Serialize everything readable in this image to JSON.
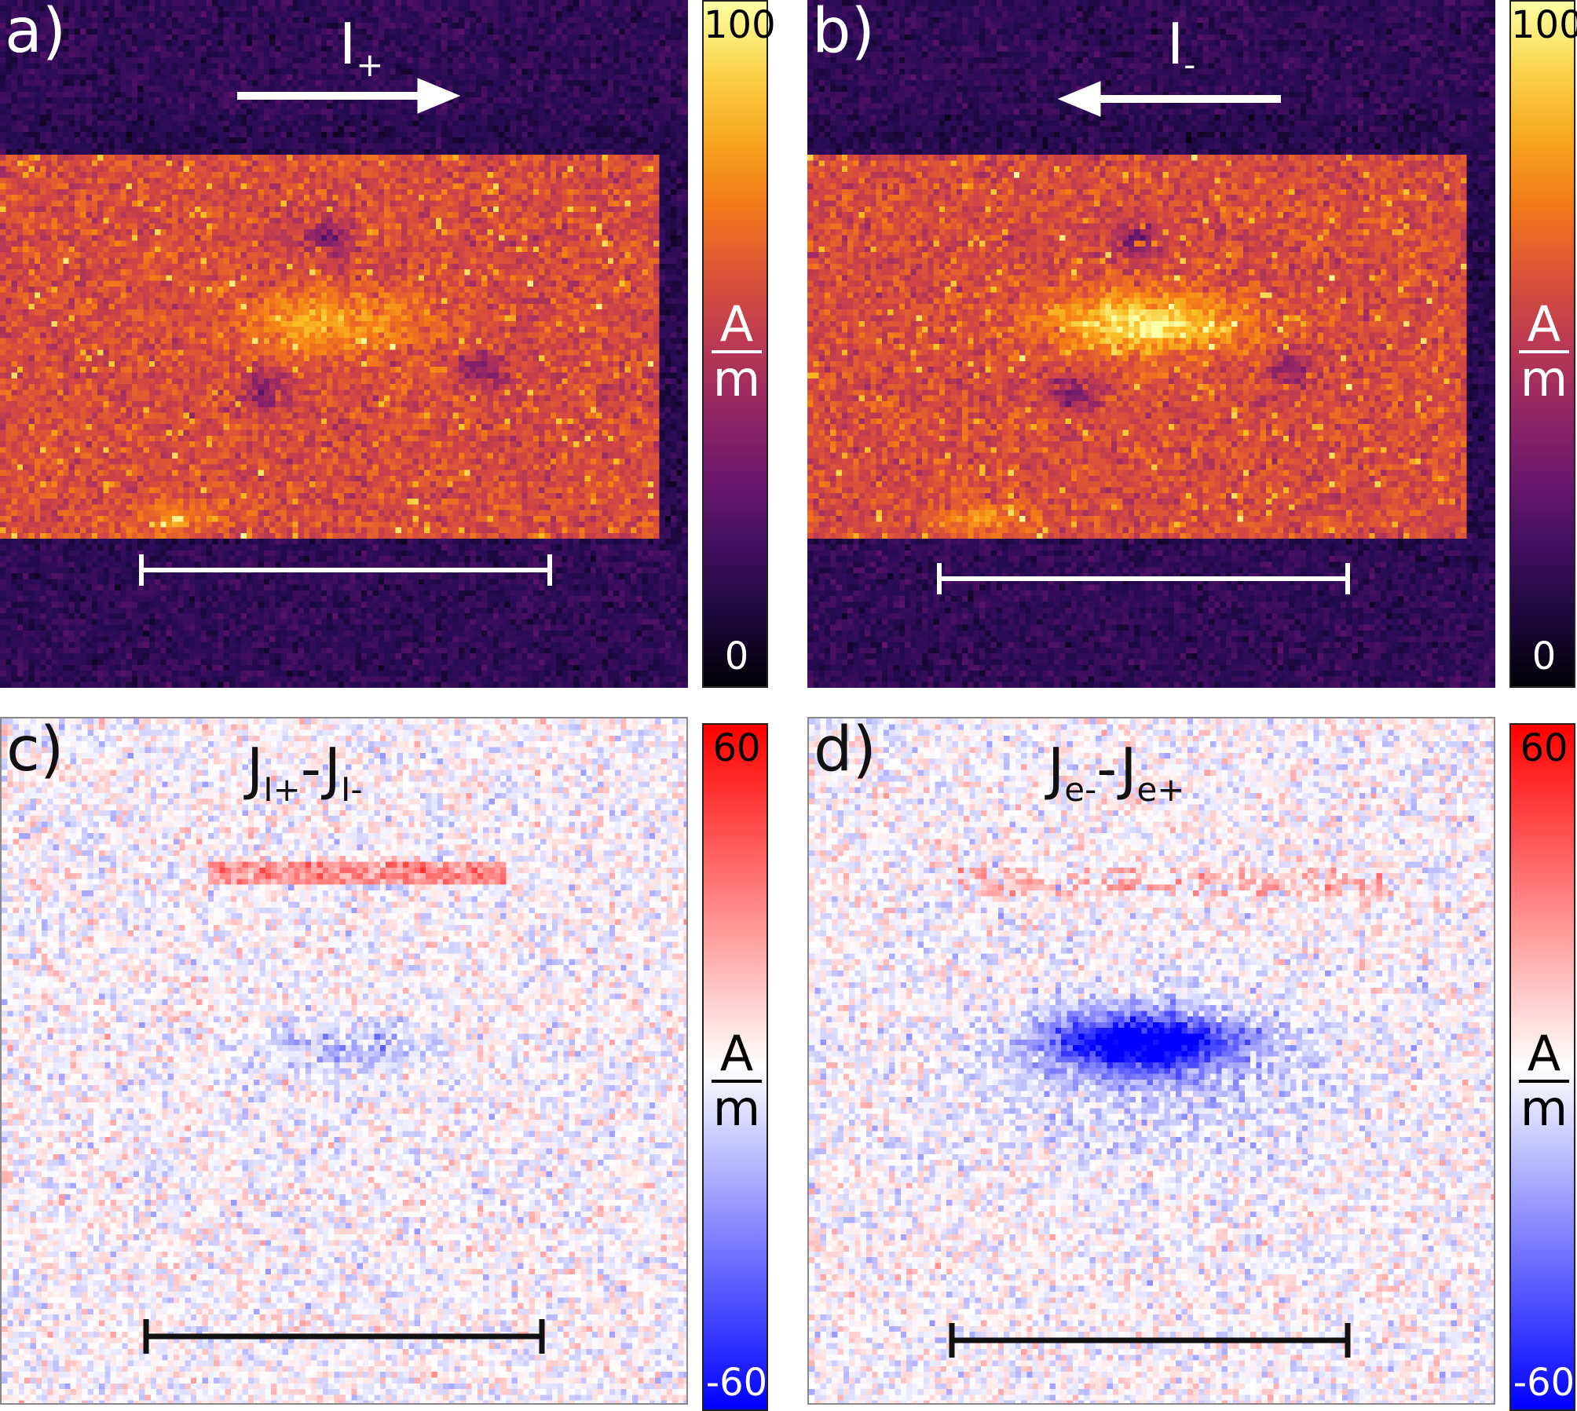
{
  "panels": [
    {
      "letter": "a)",
      "kind": "magnitude",
      "title_main": "I",
      "title_sub": "+",
      "arrow": "right",
      "scalebar_color": "#ffffff",
      "text_color": "#ffffff",
      "seed": 11,
      "variant": "plus"
    },
    {
      "letter": "b)",
      "kind": "magnitude",
      "title_main": "I",
      "title_sub": "-",
      "arrow": "left",
      "scalebar_color": "#ffffff",
      "text_color": "#ffffff",
      "seed": 23,
      "variant": "minus"
    },
    {
      "letter": "c)",
      "kind": "difference",
      "title_parts": [
        "J",
        "I+",
        "-J",
        "I-"
      ],
      "scalebar_color": "#111111",
      "text_color": "#111111",
      "seed": 37,
      "variant": "c"
    },
    {
      "letter": "d)",
      "kind": "difference",
      "title_parts": [
        "J",
        "e-",
        "-J",
        "e+"
      ],
      "scalebar_color": "#111111",
      "text_color": "#111111",
      "seed": 53,
      "variant": "d"
    }
  ],
  "colorbars": [
    {
      "top": "100",
      "bottom": "0",
      "unit_num": "A",
      "unit_den": "m",
      "top_color": "#000000",
      "bottom_color": "#ffffff",
      "unit_color": "#ffffff",
      "cmap": "inferno"
    },
    {
      "top": "100",
      "bottom": "0",
      "unit_num": "A",
      "unit_den": "m",
      "top_color": "#000000",
      "bottom_color": "#ffffff",
      "unit_color": "#ffffff",
      "cmap": "inferno"
    },
    {
      "top": "60",
      "bottom": "-60",
      "unit_num": "A",
      "unit_den": "m",
      "top_color": "#000000",
      "bottom_color": "#ffffff",
      "unit_color": "#000000",
      "cmap": "bwr"
    },
    {
      "top": "60",
      "bottom": "-60",
      "unit_num": "A",
      "unit_den": "m",
      "top_color": "#000000",
      "bottom_color": "#ffffff",
      "unit_color": "#000000",
      "cmap": "bwr"
    }
  ]
}
